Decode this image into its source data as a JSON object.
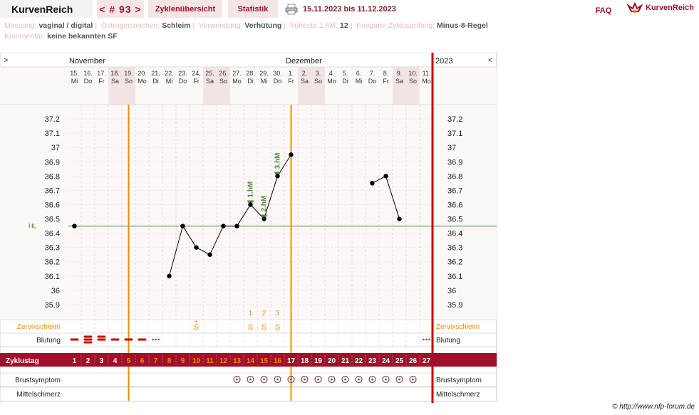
{
  "header": {
    "brand": "KurvenReich",
    "cycle_nav": "< # 93 >",
    "tabs": [
      "Zyklenübersicht",
      "Statistik"
    ],
    "date_range": "15.11.2023 bis 11.12.2023",
    "faq": "FAQ",
    "logo_text": "KurvenReich"
  },
  "info_line1": [
    {
      "key": "Messung:",
      "value": "vaginal / digital"
    },
    {
      "key": "Östrogenzeichen:",
      "value": "Schleim"
    },
    {
      "key": "Verwendung:",
      "value": "Verhütung"
    },
    {
      "key": "früheste 1.hM:",
      "value": "12"
    },
    {
      "key": "Freigabe Zyklusanfang:",
      "value": "Minus-8-Regel"
    }
  ],
  "info_line2": [
    {
      "key": "Kommentar:",
      "value": "keine bekannten SF"
    }
  ],
  "chart_data": {
    "type": "line",
    "title": "",
    "nav_left": ">",
    "nav_right": "<",
    "months": [
      {
        "label": "November",
        "at_day": 1
      },
      {
        "label": "Dezember",
        "at_day": 17
      },
      {
        "label": "2023",
        "at_day": 28
      }
    ],
    "dates": [
      "15.",
      "16.",
      "17.",
      "18.",
      "19.",
      "20.",
      "21.",
      "22.",
      "23.",
      "24.",
      "25.",
      "26.",
      "27.",
      "28.",
      "29.",
      "30.",
      "1.",
      "2.",
      "3.",
      "4.",
      "5.",
      "6.",
      "7.",
      "8.",
      "9.",
      "10.",
      "11."
    ],
    "weekdays": [
      "Mi",
      "Do",
      "Fr",
      "Sa",
      "So",
      "Mo",
      "Di",
      "Mi",
      "Do",
      "Fr",
      "Sa",
      "So",
      "Mo",
      "Di",
      "Mi",
      "Do",
      "Fr",
      "Sa",
      "So",
      "Mo",
      "Di",
      "Mi",
      "Do",
      "Fr",
      "Sa",
      "So",
      "Mo"
    ],
    "weekend_days": [
      4,
      5,
      11,
      12,
      18,
      19,
      25,
      26
    ],
    "cycle_days": [
      1,
      2,
      3,
      4,
      5,
      6,
      7,
      8,
      9,
      10,
      11,
      12,
      13,
      14,
      15,
      16,
      17,
      18,
      19,
      20,
      21,
      22,
      23,
      24,
      25,
      26,
      27
    ],
    "temperatures": [
      36.45,
      null,
      null,
      null,
      null,
      null,
      null,
      36.1,
      36.45,
      36.3,
      36.25,
      36.45,
      36.45,
      36.6,
      36.5,
      36.8,
      36.95,
      null,
      null,
      null,
      null,
      null,
      36.75,
      36.8,
      36.5,
      null,
      null
    ],
    "y_ticks": [
      35.9,
      36.0,
      36.1,
      36.2,
      36.3,
      36.4,
      36.5,
      36.6,
      36.7,
      36.8,
      36.9,
      37.0,
      37.1,
      37.2
    ],
    "y_tick_labels": [
      "35.9",
      "36",
      "36.1",
      "36.2",
      "36.3",
      "36.4",
      "36.5",
      "36.6",
      "36.7",
      "36.8",
      "36.9",
      "37",
      "37.1",
      "37.2"
    ],
    "ylim": [
      35.8,
      37.3
    ],
    "hl_label": "HL",
    "hl_value": 36.45,
    "vertical_markers": [
      4.5,
      16.5
    ],
    "hm_markers": [
      {
        "day": 14,
        "label": "1.hM"
      },
      {
        "day": 15,
        "label": "2.hM"
      },
      {
        "day": 16,
        "label": "3.hM"
      }
    ],
    "mucus_labels": [
      {
        "day": 14,
        "text": "1"
      },
      {
        "day": 15,
        "text": "2"
      },
      {
        "day": 16,
        "text": "3"
      }
    ],
    "mucus_row_label": "Zervixschleim",
    "mucus": [
      {
        "day": 10,
        "text": "S+"
      },
      {
        "day": 14,
        "text": "S"
      },
      {
        "day": 15,
        "text": "S"
      },
      {
        "day": 16,
        "text": "S"
      }
    ],
    "bleeding_row_label": "Blutung",
    "bleeding": [
      {
        "day": 1,
        "level": 2
      },
      {
        "day": 2,
        "level": 4
      },
      {
        "day": 3,
        "level": 3
      },
      {
        "day": 4,
        "level": 2
      },
      {
        "day": 5,
        "level": 2
      },
      {
        "day": 6,
        "level": 2
      },
      {
        "day": 7,
        "level": 1
      },
      {
        "day": 27,
        "level": 1
      }
    ],
    "cycle_row_label": "Zyklustag",
    "orange_cycle_days": [
      5,
      6,
      7,
      8,
      9,
      10,
      11,
      12,
      13,
      14,
      15,
      16
    ],
    "breast_row_label": "Brustsymptom",
    "breast_days": [
      13,
      14,
      15,
      16,
      17,
      18,
      19,
      20,
      21,
      22,
      23,
      24,
      25,
      26
    ],
    "pain_row_label": "Mittelschmerz",
    "colors": {
      "accent": "#a0102a",
      "orange": "#f08c00",
      "green": "#3a8a2a",
      "weekend": "#f3e4e4",
      "grid": "#f7ecec",
      "bg": "#fdf8f8"
    }
  },
  "footer": {
    "copyright": "© http://www.nfp-forum.de"
  }
}
